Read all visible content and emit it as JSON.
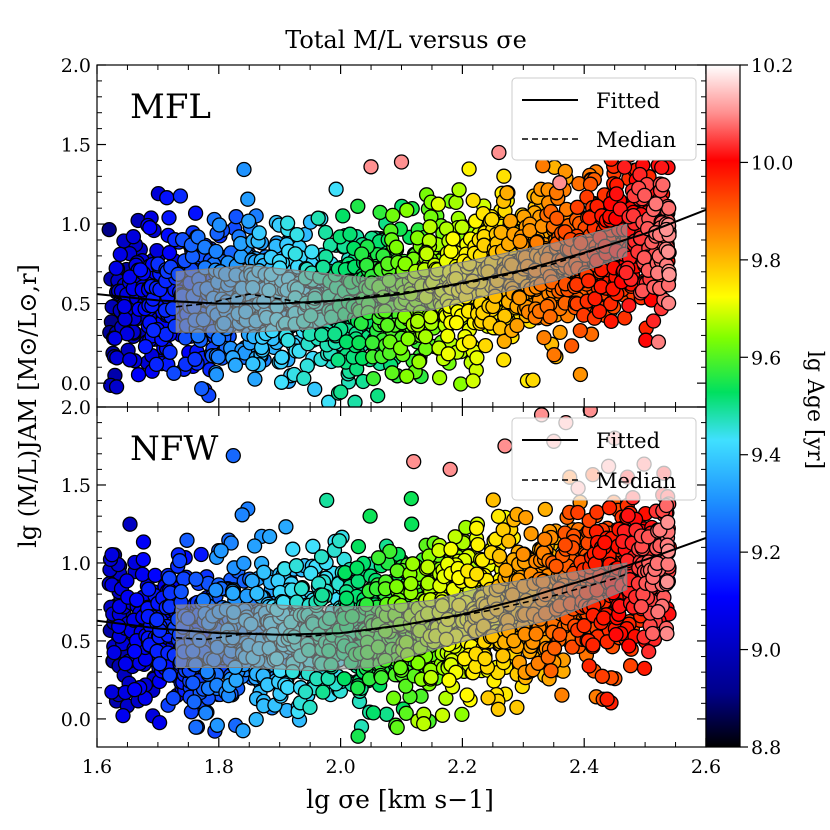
{
  "figure": {
    "title": "Total M/L versus σe",
    "ylabel": "lg (M/L)JAM [M⊙/L⊙,r]",
    "xlabel": "lg σe [km s−1]"
  },
  "chart_data": [
    {
      "type": "scatter",
      "panel_label": "MFL",
      "xlim": [
        1.6,
        2.6
      ],
      "ylim": [
        -0.15,
        2.0
      ],
      "x_ticks": [
        "1.6",
        "1.8",
        "2.0",
        "2.2",
        "2.4",
        "2.6"
      ],
      "y_ticks": [
        "0.0",
        "0.5",
        "1.0",
        "1.5",
        "2.0"
      ],
      "legend": {
        "position": "top-right",
        "entries": [
          {
            "label": "Fitted",
            "style": "solid"
          },
          {
            "label": "Median",
            "style": "dashed"
          }
        ]
      },
      "fitted_curve": {
        "x": [
          1.6,
          1.7,
          1.8,
          1.9,
          2.0,
          2.1,
          2.2,
          2.3,
          2.4,
          2.5,
          2.6
        ],
        "y": [
          0.56,
          0.52,
          0.5,
          0.5,
          0.52,
          0.56,
          0.63,
          0.71,
          0.82,
          0.94,
          1.09
        ]
      },
      "median_curve": {
        "x": [
          1.73,
          1.78,
          1.85,
          1.95,
          2.05,
          2.15,
          2.25,
          2.35,
          2.45,
          2.47
        ],
        "y": [
          0.48,
          0.5,
          0.56,
          0.5,
          0.55,
          0.59,
          0.66,
          0.75,
          0.88,
          0.9
        ]
      },
      "band": {
        "x": [
          1.73,
          1.85,
          1.95,
          2.05,
          2.15,
          2.25,
          2.35,
          2.47
        ],
        "upper": [
          0.7,
          0.74,
          0.7,
          0.66,
          0.72,
          0.8,
          0.88,
          1.0
        ],
        "lower": [
          0.32,
          0.32,
          0.34,
          0.44,
          0.46,
          0.56,
          0.64,
          0.8
        ]
      },
      "points": {
        "count": 2600,
        "seed": 11,
        "trend": {
          "x": [
            1.6,
            1.8,
            2.0,
            2.2,
            2.4,
            2.55
          ],
          "y": [
            0.5,
            0.52,
            0.52,
            0.62,
            0.8,
            0.95
          ]
        },
        "spread": 0.22,
        "outliers_high": [
          [
            2.26,
            1.45
          ],
          [
            2.33,
            1.45
          ],
          [
            2.05,
            1.36
          ],
          [
            2.1,
            1.39
          ],
          [
            2.36,
            1.26
          ]
        ]
      }
    },
    {
      "type": "scatter",
      "panel_label": "NFW",
      "xlim": [
        1.6,
        2.6
      ],
      "ylim": [
        -0.18,
        2.0
      ],
      "x_ticks": [
        "1.6",
        "1.8",
        "2.0",
        "2.2",
        "2.4",
        "2.6"
      ],
      "y_ticks": [
        "0.0",
        "0.5",
        "1.0",
        "1.5",
        "2.0"
      ],
      "legend": {
        "position": "top-right",
        "entries": [
          {
            "label": "Fitted",
            "style": "solid"
          },
          {
            "label": "Median",
            "style": "dashed"
          }
        ]
      },
      "fitted_curve": {
        "x": [
          1.6,
          1.7,
          1.8,
          1.9,
          2.0,
          2.1,
          2.2,
          2.3,
          2.4,
          2.5,
          2.6
        ],
        "y": [
          0.63,
          0.58,
          0.55,
          0.54,
          0.55,
          0.6,
          0.67,
          0.77,
          0.89,
          1.02,
          1.16
        ]
      },
      "median_curve": {
        "x": [
          1.73,
          1.78,
          1.85,
          1.95,
          2.05,
          2.15,
          2.25,
          2.35,
          2.45,
          2.47
        ],
        "y": [
          0.52,
          0.51,
          0.55,
          0.53,
          0.57,
          0.63,
          0.7,
          0.79,
          0.9,
          0.93
        ]
      },
      "band": {
        "x": [
          1.73,
          1.85,
          1.95,
          2.05,
          2.15,
          2.25,
          2.35,
          2.47
        ],
        "upper": [
          0.73,
          0.74,
          0.72,
          0.72,
          0.76,
          0.86,
          0.92,
          1.0
        ],
        "lower": [
          0.33,
          0.33,
          0.31,
          0.33,
          0.44,
          0.55,
          0.64,
          0.83
        ]
      },
      "points": {
        "count": 2600,
        "seed": 23,
        "trend": {
          "x": [
            1.6,
            1.8,
            2.0,
            2.2,
            2.4,
            2.55
          ],
          "y": [
            0.55,
            0.55,
            0.55,
            0.66,
            0.84,
            0.98
          ]
        },
        "spread": 0.24,
        "outliers_high": [
          [
            2.33,
            1.95
          ],
          [
            2.41,
            1.98
          ],
          [
            2.37,
            1.9
          ],
          [
            2.35,
            1.78
          ],
          [
            2.45,
            1.8
          ],
          [
            2.44,
            1.62
          ],
          [
            2.39,
            1.48
          ],
          [
            2.12,
            1.65
          ],
          [
            2.18,
            1.6
          ],
          [
            2.27,
            1.75
          ]
        ]
      }
    }
  ],
  "colorbar": {
    "label": "lg Age [yr]",
    "range": [
      8.8,
      10.2
    ],
    "ticks": [
      "8.8",
      "9.0",
      "9.2",
      "9.4",
      "9.6",
      "9.8",
      "10.0",
      "10.2"
    ],
    "colormap": "jet",
    "colors": [
      "#000080",
      "#0000ff",
      "#00ffff",
      "#00ff00",
      "#ffff00",
      "#ff0000",
      "#ffffff"
    ]
  }
}
